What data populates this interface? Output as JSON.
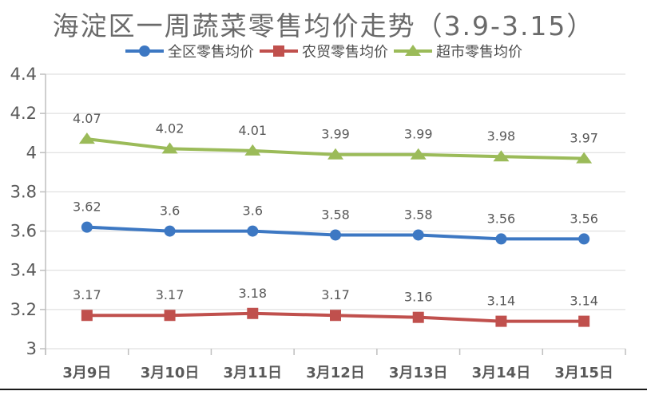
{
  "chart": {
    "title": "海淀区一周蔬菜零售均价走势（3.9-3.15）"
  },
  "chart_data": {
    "type": "line",
    "title": "海淀区一周蔬菜零售均价走势（3.9-3.15）",
    "xlabel": "",
    "ylabel": "",
    "categories": [
      "3月9日",
      "3月10日",
      "3月11日",
      "3月12日",
      "3月13日",
      "3月14日",
      "3月15日"
    ],
    "series": [
      {
        "name": "全区零售均价",
        "marker": "circle",
        "color": "#3D78C3",
        "values": [
          3.62,
          3.6,
          3.6,
          3.58,
          3.58,
          3.56,
          3.56
        ]
      },
      {
        "name": "农贸零售均价",
        "marker": "square",
        "color": "#C0504D",
        "values": [
          3.17,
          3.17,
          3.18,
          3.17,
          3.16,
          3.14,
          3.14
        ]
      },
      {
        "name": "超市零售均价",
        "marker": "triangle",
        "color": "#9BBB59",
        "values": [
          4.07,
          4.02,
          4.01,
          3.99,
          3.99,
          3.98,
          3.97
        ]
      }
    ],
    "ylim": [
      3,
      4.4
    ],
    "yticks": [
      3,
      3.2,
      3.4,
      3.6,
      3.8,
      4,
      4.2,
      4.4
    ],
    "ytick_labels": [
      "3",
      "3.2",
      "3.4",
      "3.6",
      "3.8",
      "4",
      "4.2",
      "4.4"
    ],
    "grid": true,
    "legend_position": "top",
    "colors": {
      "grid": "#D9D9D9",
      "axis": "#BFBFBF",
      "labels": "#595959",
      "title": "#6A6A6A"
    }
  }
}
